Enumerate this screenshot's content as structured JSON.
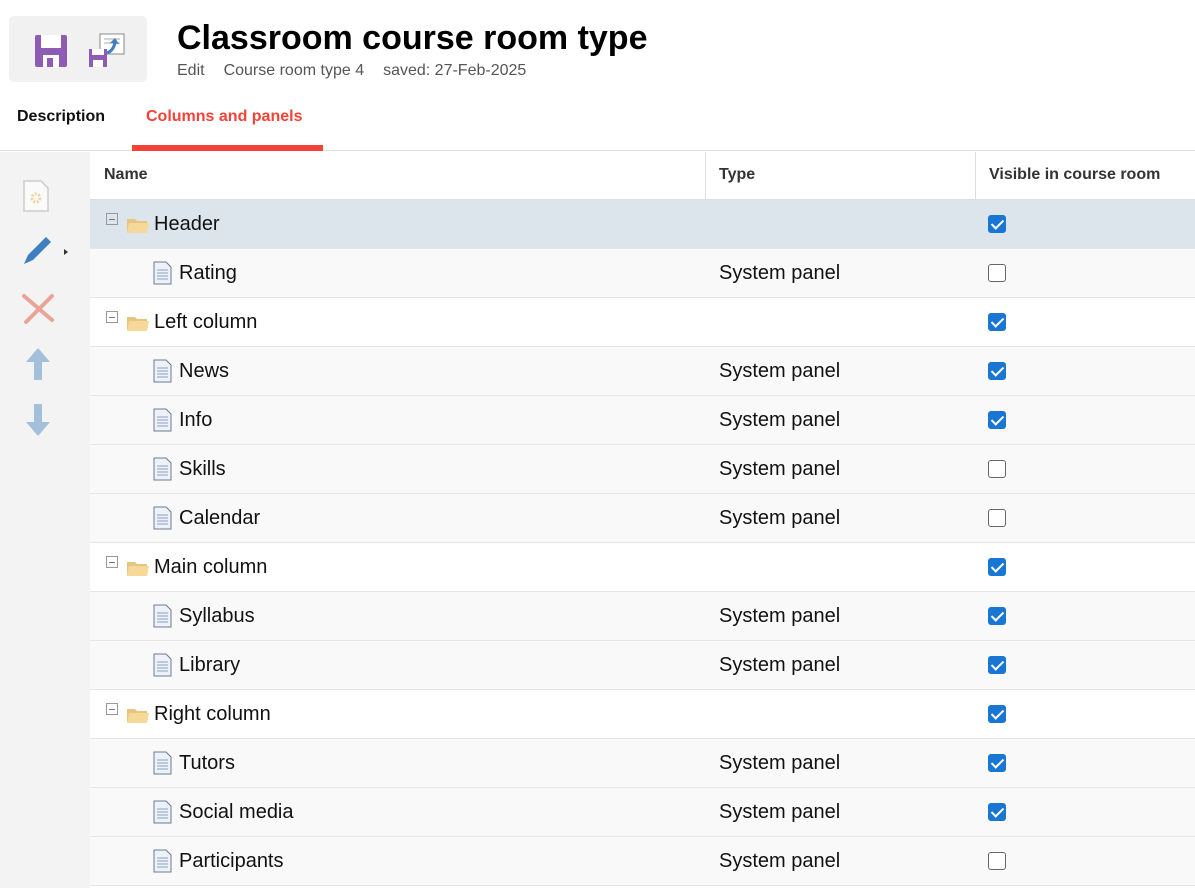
{
  "header": {
    "title": "Classroom course room type",
    "mode": "Edit",
    "record": "Course room type 4",
    "saved": "saved: 27-Feb-2025"
  },
  "toolbar": {
    "save_icon": "save-icon",
    "save_as_icon": "save-as-icon"
  },
  "tabs": [
    {
      "label": "Description",
      "active": false
    },
    {
      "label": "Columns and panels",
      "active": true
    }
  ],
  "accent": "#f44336",
  "sidebar": [
    "new-panel-icon",
    "edit-icon",
    "delete-icon",
    "move-up-icon",
    "move-down-icon"
  ],
  "columns": {
    "name": "Name",
    "type": "Type",
    "visible": "Visible in course room"
  },
  "rows": [
    {
      "name": "Header",
      "type": "",
      "visible": true,
      "folder": true,
      "selected": true
    },
    {
      "name": "Rating",
      "type": "System panel",
      "visible": false
    },
    {
      "name": "Left column",
      "type": "",
      "visible": true,
      "folder": true
    },
    {
      "name": "News",
      "type": "System panel",
      "visible": true
    },
    {
      "name": "Info",
      "type": "System panel",
      "visible": true
    },
    {
      "name": "Skills",
      "type": "System panel",
      "visible": false
    },
    {
      "name": "Calendar",
      "type": "System panel",
      "visible": false
    },
    {
      "name": "Main column",
      "type": "",
      "visible": true,
      "folder": true
    },
    {
      "name": "Syllabus",
      "type": "System panel",
      "visible": true
    },
    {
      "name": "Library",
      "type": "System panel",
      "visible": true
    },
    {
      "name": "Right column",
      "type": "",
      "visible": true,
      "folder": true
    },
    {
      "name": "Tutors",
      "type": "System panel",
      "visible": true
    },
    {
      "name": "Social media",
      "type": "System panel",
      "visible": true
    },
    {
      "name": "Participants",
      "type": "System panel",
      "visible": false
    }
  ]
}
